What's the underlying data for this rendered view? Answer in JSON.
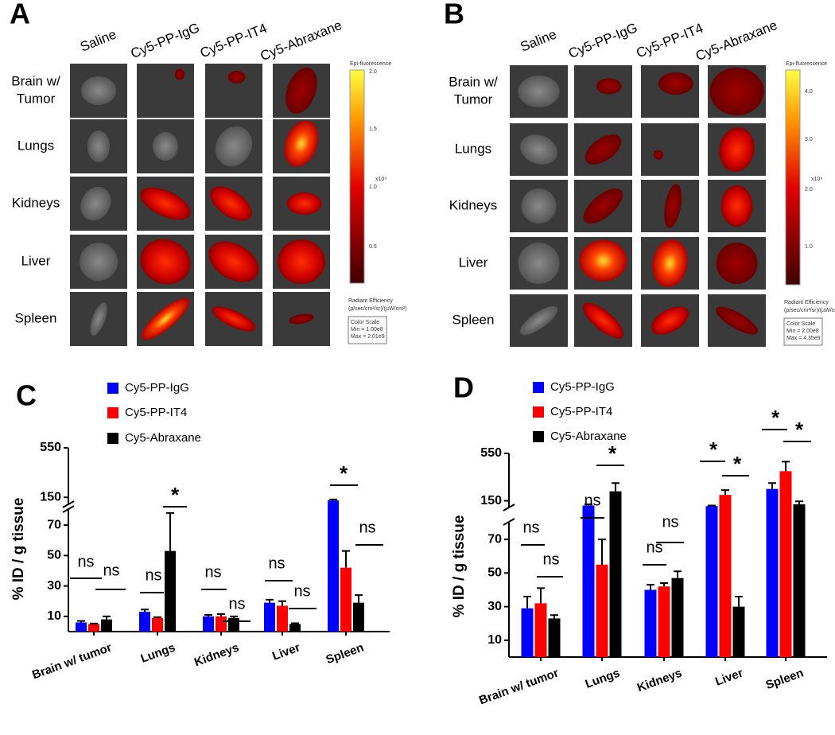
{
  "image_panels": [
    {
      "label": "A",
      "columns": [
        "Saline",
        "Cy5-PP-IgG",
        "Cy5-PP-IT4",
        "Cy5-Abraxane"
      ],
      "rows": [
        [
          "Brain w/",
          "Tumor"
        ],
        [
          "Lungs"
        ],
        [
          "Kidneys"
        ],
        [
          "Liver"
        ],
        [
          "Spleen"
        ]
      ],
      "colorbar": {
        "title": "Epi-fluorescence",
        "ticks": [
          "2.0",
          "1.5",
          "1.0",
          "0.5"
        ],
        "exponent": "x10⁹",
        "quantity": "Radiant Efficiency",
        "unit": "(p/sec/cm²/sr)/(µW/cm²)",
        "scale_title": "Color Scale",
        "min": "Min = 1.00e8",
        "max": "Max = 2.01e9"
      }
    },
    {
      "label": "B",
      "columns": [
        "Saline",
        "Cy5-PP-IgG",
        "Cy5-PP-IT4",
        "Cy5-Abraxane"
      ],
      "rows": [
        [
          "Brain w/",
          "Tumor"
        ],
        [
          "Lungs"
        ],
        [
          "Kidneys"
        ],
        [
          "Liver"
        ],
        [
          "Spleen"
        ]
      ],
      "colorbar": {
        "title": "Epi-fluorescence",
        "ticks": [
          "4.0",
          "3.0",
          "2.0",
          "1.0"
        ],
        "exponent": "x10⁹",
        "quantity": "Radiant Efficiency",
        "unit": "(p/sec/cm²/sr)/(µW/cm²)",
        "scale_title": "Color Scale",
        "min": "Min = 2.00e8",
        "max": "Max = 4.35e9"
      }
    }
  ],
  "chart_data": [
    {
      "label": "C",
      "type": "bar",
      "y_label": "% ID / g tissue",
      "categories": [
        "Brain w/ tumor",
        "Lungs",
        "Kidneys",
        "Liver",
        "Spleen"
      ],
      "series": [
        {
          "name": "Cy5-PP-IgG",
          "color": "#0000ff",
          "values": [
            6,
            13,
            10,
            19,
            125
          ],
          "errors": [
            1,
            1.5,
            1,
            2,
            8
          ]
        },
        {
          "name": "Cy5-PP-IT4",
          "color": "#ff0000",
          "values": [
            5,
            9,
            10,
            17,
            42
          ],
          "errors": [
            0.3,
            0.5,
            1.5,
            3,
            11
          ]
        },
        {
          "name": "Cy5-Abraxane",
          "color": "#000000",
          "values": [
            8,
            53,
            9,
            5,
            19
          ],
          "errors": [
            2,
            25,
            1,
            0.5,
            5
          ]
        }
      ],
      "ylim": [
        0,
        550
      ],
      "axis_break": [
        80,
        100
      ],
      "yticks": [
        10,
        30,
        50,
        70,
        150,
        550
      ],
      "annotations": [
        "ns",
        "ns",
        "ns",
        "*",
        "ns",
        "ns",
        "ns",
        "ns",
        "*",
        "ns"
      ]
    },
    {
      "label": "D",
      "type": "bar",
      "y_label": "% ID / g tissue",
      "categories": [
        "Brain w/ tumor",
        "Lungs",
        "Kidneys",
        "Liver",
        "Spleen"
      ],
      "series": [
        {
          "name": "Cy5-PP-IgG",
          "color": "#0000ff",
          "values": [
            29,
            110,
            40,
            105,
            250
          ],
          "errors": [
            7,
            10,
            3,
            5,
            50
          ]
        },
        {
          "name": "Cy5-PP-IT4",
          "color": "#ff0000",
          "values": [
            32,
            55,
            42,
            200,
            400
          ],
          "errors": [
            9,
            15,
            2,
            40,
            80
          ]
        },
        {
          "name": "Cy5-Abraxane",
          "color": "#000000",
          "values": [
            23,
            230,
            47,
            30,
            120
          ],
          "errors": [
            2,
            70,
            4,
            6,
            25
          ]
        }
      ],
      "ylim": [
        0,
        550
      ],
      "axis_break": [
        80,
        100
      ],
      "yticks": [
        10,
        30,
        50,
        70,
        150,
        550
      ],
      "annotations": [
        "ns",
        "ns",
        "ns",
        "*",
        "ns",
        "ns",
        "*",
        "*",
        "*",
        "*"
      ]
    }
  ]
}
